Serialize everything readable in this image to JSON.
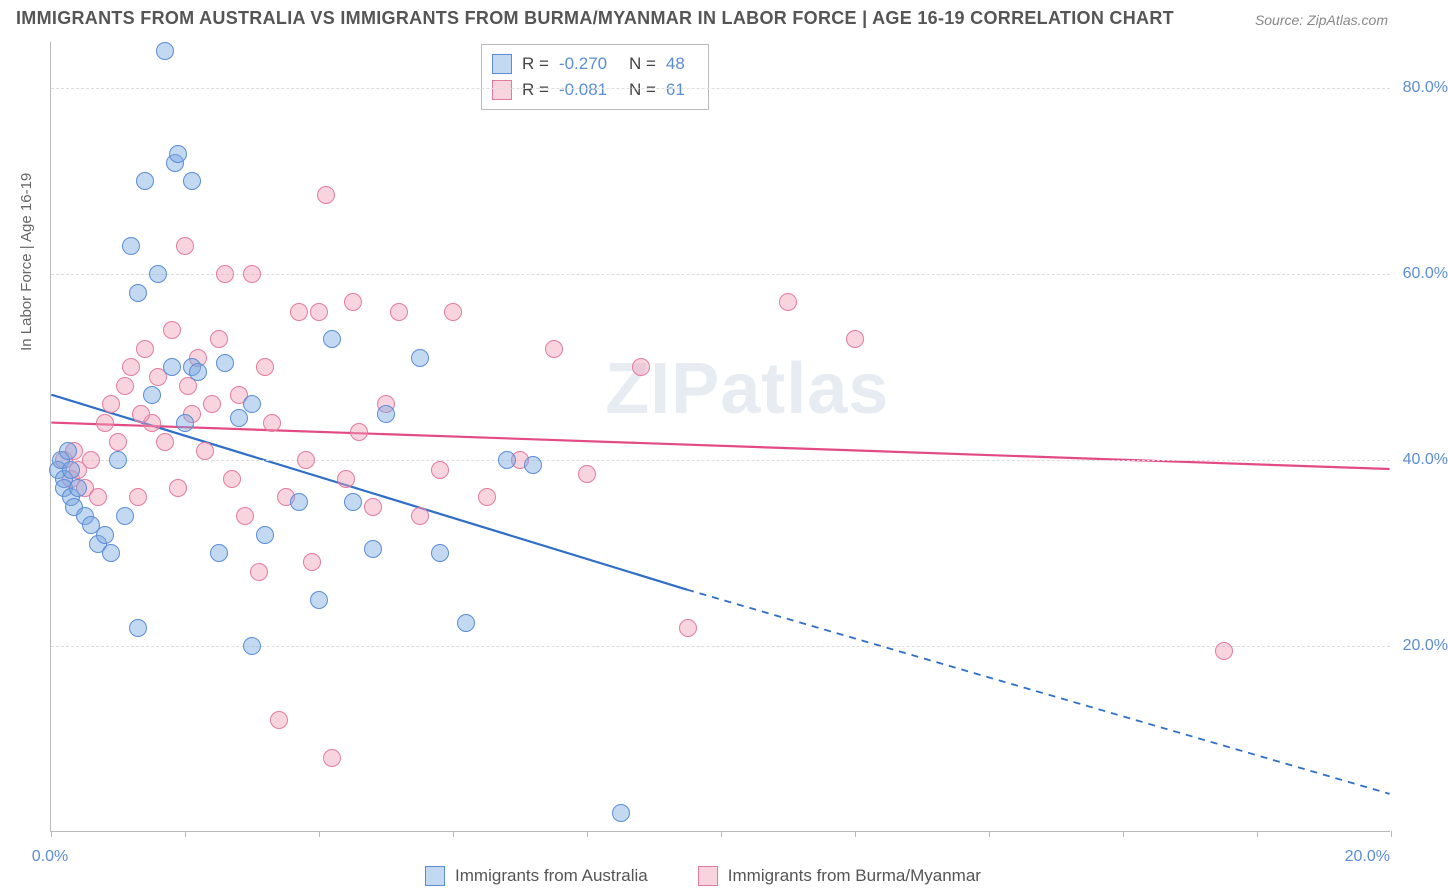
{
  "title": "IMMIGRANTS FROM AUSTRALIA VS IMMIGRANTS FROM BURMA/MYANMAR IN LABOR FORCE | AGE 16-19 CORRELATION CHART",
  "source_label": "Source:",
  "source_name": "ZipAtlas.com",
  "ylabel": "In Labor Force | Age 16-19",
  "watermark": "ZIPatlas",
  "plot": {
    "x_range": [
      0,
      20
    ],
    "y_range": [
      0,
      85
    ],
    "y_ticks": [
      20,
      40,
      60,
      80
    ],
    "y_tick_labels": [
      "20.0%",
      "40.0%",
      "60.0%",
      "80.0%"
    ],
    "x_ticks": [
      0,
      2,
      4,
      6,
      8,
      10,
      12,
      14,
      16,
      18,
      20
    ],
    "x_tick_labels_shown": {
      "0": "0.0%",
      "20": "20.0%"
    },
    "grid_color": "#dddddd",
    "axis_color": "#bbbbbb",
    "tick_label_color": "#5b8dd6",
    "background": "#ffffff"
  },
  "series": [
    {
      "name": "Immigrants from Australia",
      "fill": "rgba(122,168,224,0.45)",
      "stroke": "#5b8dd6",
      "marker_radius": 9,
      "line_color": "#2f6fc9",
      "R": "-0.270",
      "N": "48",
      "regression": {
        "x1": 0,
        "y1": 47,
        "x2": 9.5,
        "y2": 26,
        "x2_dash": 20,
        "y2_dash": 4
      },
      "points": [
        [
          0.1,
          39
        ],
        [
          0.15,
          40
        ],
        [
          0.2,
          38
        ],
        [
          0.2,
          37
        ],
        [
          0.25,
          41
        ],
        [
          0.3,
          36
        ],
        [
          0.3,
          39
        ],
        [
          0.35,
          35
        ],
        [
          0.4,
          37
        ],
        [
          0.5,
          34
        ],
        [
          0.6,
          33
        ],
        [
          0.7,
          31
        ],
        [
          0.8,
          32
        ],
        [
          0.9,
          30
        ],
        [
          1.1,
          34
        ],
        [
          1.2,
          63
        ],
        [
          1.3,
          58
        ],
        [
          1.3,
          22
        ],
        [
          1.4,
          70
        ],
        [
          1.5,
          47
        ],
        [
          1.6,
          60
        ],
        [
          1.7,
          84
        ],
        [
          1.8,
          50
        ],
        [
          1.85,
          72
        ],
        [
          1.9,
          73
        ],
        [
          2.0,
          44
        ],
        [
          2.1,
          70
        ],
        [
          2.1,
          50
        ],
        [
          2.2,
          49.5
        ],
        [
          2.5,
          30
        ],
        [
          2.6,
          50.5
        ],
        [
          2.8,
          44.5
        ],
        [
          3.0,
          46
        ],
        [
          3.0,
          20
        ],
        [
          3.2,
          32
        ],
        [
          3.7,
          35.5
        ],
        [
          4.0,
          25
        ],
        [
          4.2,
          53
        ],
        [
          4.5,
          35.5
        ],
        [
          4.8,
          30.5
        ],
        [
          5.5,
          51
        ],
        [
          5.8,
          30
        ],
        [
          6.2,
          22.5
        ],
        [
          6.8,
          40
        ],
        [
          7.2,
          39.5
        ],
        [
          8.5,
          2
        ],
        [
          5.0,
          45
        ],
        [
          1.0,
          40
        ]
      ]
    },
    {
      "name": "Immigrants from Burma/Myanmar",
      "fill": "rgba(240,160,185,0.45)",
      "stroke": "#e37ba0",
      "marker_radius": 9,
      "line_color": "#e34b84",
      "R": "-0.081",
      "N": "61",
      "regression": {
        "x1": 0,
        "y1": 44,
        "x2": 20,
        "y2": 39
      },
      "points": [
        [
          0.2,
          40
        ],
        [
          0.3,
          38
        ],
        [
          0.35,
          41
        ],
        [
          0.4,
          39
        ],
        [
          0.5,
          37
        ],
        [
          0.6,
          40
        ],
        [
          0.8,
          44
        ],
        [
          1.0,
          42
        ],
        [
          1.1,
          48
        ],
        [
          1.3,
          36
        ],
        [
          1.4,
          52
        ],
        [
          1.5,
          44
        ],
        [
          1.6,
          49
        ],
        [
          1.7,
          42
        ],
        [
          1.8,
          54
        ],
        [
          1.9,
          37
        ],
        [
          2.0,
          63
        ],
        [
          2.1,
          45
        ],
        [
          2.2,
          51
        ],
        [
          2.3,
          41
        ],
        [
          2.4,
          46
        ],
        [
          2.5,
          53
        ],
        [
          2.7,
          38
        ],
        [
          2.8,
          47
        ],
        [
          2.9,
          34
        ],
        [
          3.0,
          60
        ],
        [
          3.1,
          28
        ],
        [
          3.3,
          44
        ],
        [
          3.4,
          12
        ],
        [
          3.5,
          36
        ],
        [
          3.7,
          56
        ],
        [
          3.8,
          40
        ],
        [
          3.9,
          29
        ],
        [
          4.0,
          56
        ],
        [
          4.1,
          68.5
        ],
        [
          4.2,
          8
        ],
        [
          4.4,
          38
        ],
        [
          4.5,
          57
        ],
        [
          4.8,
          35
        ],
        [
          5.0,
          46
        ],
        [
          5.2,
          56
        ],
        [
          5.5,
          34
        ],
        [
          5.8,
          39
        ],
        [
          6.0,
          56
        ],
        [
          6.5,
          36
        ],
        [
          7.0,
          40
        ],
        [
          7.5,
          52
        ],
        [
          8.0,
          38.5
        ],
        [
          8.8,
          50
        ],
        [
          9.5,
          22
        ],
        [
          11.0,
          57
        ],
        [
          12.0,
          53
        ],
        [
          17.5,
          19.5
        ],
        [
          0.9,
          46
        ],
        [
          1.2,
          50
        ],
        [
          2.6,
          60
        ],
        [
          3.2,
          50
        ],
        [
          4.6,
          43
        ],
        [
          1.35,
          45
        ],
        [
          0.7,
          36
        ],
        [
          2.05,
          48
        ]
      ]
    }
  ],
  "top_legend": {
    "rows": [
      {
        "series_idx": 0,
        "R_label": "R =",
        "N_label": "N ="
      },
      {
        "series_idx": 1,
        "R_label": "R =",
        "N_label": "N ="
      }
    ]
  }
}
